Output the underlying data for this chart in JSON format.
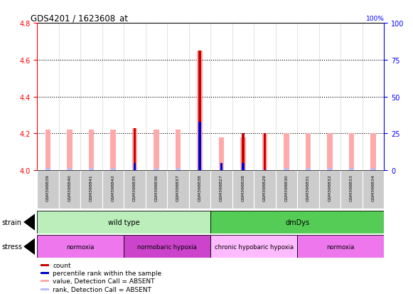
{
  "title": "GDS4201 / 1623608_at",
  "samples": [
    "GSM398839",
    "GSM398840",
    "GSM398841",
    "GSM398842",
    "GSM398835",
    "GSM398836",
    "GSM398837",
    "GSM398838",
    "GSM398827",
    "GSM398828",
    "GSM398829",
    "GSM398830",
    "GSM398831",
    "GSM398832",
    "GSM398833",
    "GSM398834"
  ],
  "values_pink": [
    4.22,
    4.22,
    4.22,
    4.22,
    4.23,
    4.22,
    4.22,
    4.65,
    4.18,
    4.18,
    4.2,
    4.2,
    4.2,
    4.2,
    4.2,
    4.2
  ],
  "values_red": [
    0,
    0,
    0,
    0,
    4.23,
    0,
    0,
    4.65,
    0,
    4.2,
    4.2,
    0,
    0,
    0,
    0,
    0
  ],
  "rank_blue_vals": [
    0,
    0,
    0,
    0,
    5,
    0,
    0,
    33,
    5,
    5,
    0,
    0,
    0,
    0,
    0,
    0
  ],
  "has_red": [
    false,
    false,
    false,
    false,
    true,
    false,
    false,
    true,
    false,
    true,
    true,
    false,
    false,
    false,
    false,
    false
  ],
  "has_blue": [
    false,
    false,
    false,
    false,
    true,
    false,
    false,
    true,
    true,
    true,
    false,
    false,
    false,
    false,
    false,
    false
  ],
  "ylim": [
    4.0,
    4.8
  ],
  "ylim_right": [
    0,
    100
  ],
  "yticks_left": [
    4.0,
    4.2,
    4.4,
    4.6,
    4.8
  ],
  "yticks_right": [
    0,
    25,
    50,
    75,
    100
  ],
  "strain_groups": [
    {
      "label": "wild type",
      "start": 0,
      "end": 8,
      "color": "#BBEEBB"
    },
    {
      "label": "dmDys",
      "start": 8,
      "end": 16,
      "color": "#55CC55"
    }
  ],
  "stress_groups": [
    {
      "label": "normoxia",
      "start": 0,
      "end": 4,
      "color": "#EE77EE"
    },
    {
      "label": "normobaric hypoxia",
      "start": 4,
      "end": 8,
      "color": "#CC44CC"
    },
    {
      "label": "chronic hypobaric hypoxia",
      "start": 8,
      "end": 12,
      "color": "#FFBBFF"
    },
    {
      "label": "normoxia",
      "start": 12,
      "end": 16,
      "color": "#EE77EE"
    }
  ],
  "color_red": "#CC0000",
  "color_pink": "#FFAAAA",
  "color_blue": "#0000CC",
  "color_blue_light": "#BBBBFF",
  "bg_plot": "#FFFFFF",
  "grid_color": "#000000",
  "sample_box_color": "#CCCCCC",
  "legend_items": [
    {
      "label": "count",
      "color": "#CC0000"
    },
    {
      "label": "percentile rank within the sample",
      "color": "#0000CC"
    },
    {
      "label": "value, Detection Call = ABSENT",
      "color": "#FFAAAA"
    },
    {
      "label": "rank, Detection Call = ABSENT",
      "color": "#BBBBFF"
    }
  ]
}
